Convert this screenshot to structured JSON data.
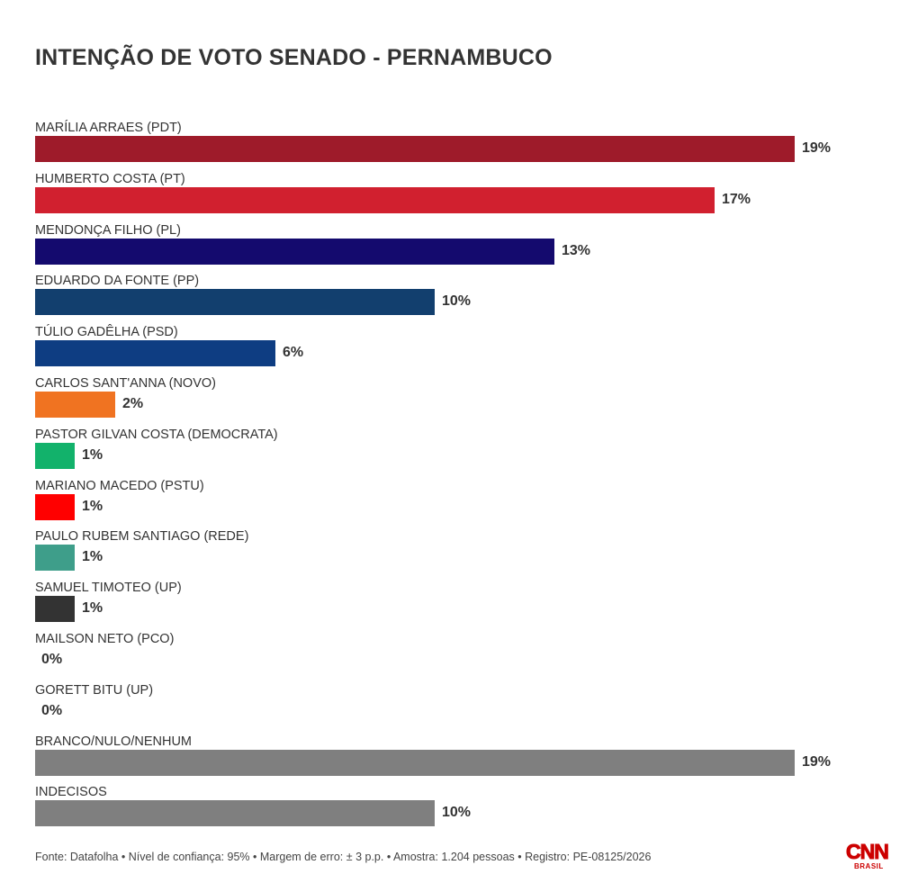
{
  "title": "INTENÇÃO DE VOTO SENADO - PERNAMBUCO",
  "footer": "Fonte: Datafolha • Nível de confiança: 95% • Margem de erro: ± 3 p.p. • Amostra: 1.204 pessoas • Registro: PE-08125/2026",
  "logo": {
    "mark": "CNN",
    "sub": "BRASIL",
    "color": "#cc0000"
  },
  "chart_data": {
    "type": "bar",
    "orientation": "horizontal",
    "title": "INTENÇÃO DE VOTO SENADO - PERNAMBUCO",
    "xlim": [
      0,
      19
    ],
    "grid": false,
    "value_suffix": "%",
    "categories": [
      "MARÍLIA ARRAES (PDT)",
      "HUMBERTO COSTA (PT)",
      "MENDONÇA FILHO (PL)",
      "EDUARDO DA FONTE (PP)",
      "TÚLIO GADÊLHA (PSD)",
      "CARLOS SANT'ANNA (NOVO)",
      "PASTOR GILVAN COSTA (DEMOCRATA)",
      "MARIANO MACEDO (PSTU)",
      "PAULO RUBEM SANTIAGO (REDE)",
      "SAMUEL TIMOTEO (UP)",
      "MAILSON NETO (PCO)",
      "GORETT BITU (UP)",
      "BRANCO/NULO/NENHUM",
      "INDECISOS"
    ],
    "values": [
      19,
      17,
      13,
      10,
      6,
      2,
      1,
      1,
      1,
      1,
      0,
      0,
      19,
      10
    ],
    "labels": [
      "19%",
      "17%",
      "13%",
      "10%",
      "6%",
      "2%",
      "1%",
      "1%",
      "1%",
      "1%",
      "0%",
      "0%",
      "19%",
      "10%"
    ],
    "colors": [
      "#9e1b2a",
      "#d1202f",
      "#140a6e",
      "#123f6e",
      "#0e3d82",
      "#f07321",
      "#12b26b",
      "#ff0000",
      "#3e9e8a",
      "#333333",
      "#999999",
      "#999999",
      "#7f7f7f",
      "#7f7f7f"
    ]
  }
}
